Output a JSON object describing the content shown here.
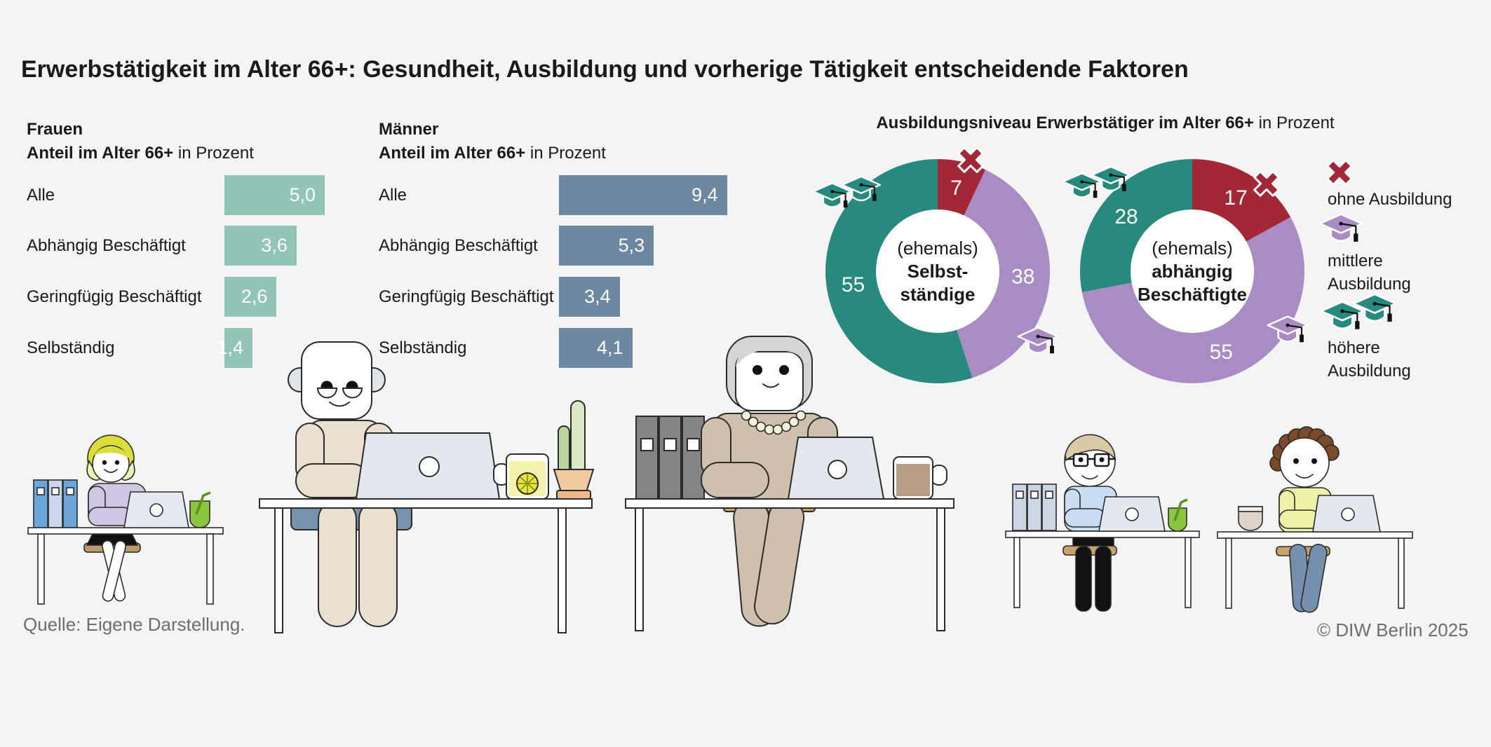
{
  "title": "Erwerbstätigkeit im Alter 66+: Gesundheit, Ausbildung und vorherige Tätigkeit entscheidende Faktoren",
  "charts": {
    "frauen": {
      "heading": "Frauen",
      "subheading_bold": "Anteil im Alter 66+",
      "subheading_regular": " in Prozent",
      "bar_color": "#92c4b7",
      "categories": [
        "Alle",
        "Abhängig Beschäftigt",
        "Geringfügig Beschäftigt",
        "Selbständig"
      ],
      "values": [
        "5,0",
        "3,6",
        "2,6",
        "1,4"
      ],
      "values_numeric": [
        5.0,
        3.6,
        2.6,
        1.4
      ]
    },
    "maenner": {
      "heading": "Männer",
      "subheading_bold": "Anteil im Alter 66+",
      "subheading_regular": " in Prozent",
      "bar_color": "#6f88a1",
      "categories": [
        "Alle",
        "Abhängig Beschäftigt",
        "Geringfügig Beschäftigt",
        "Selbständig"
      ],
      "values": [
        "9,4",
        "5,3",
        "3,4",
        "4,1"
      ],
      "values_numeric": [
        9.4,
        5.3,
        3.4,
        4.1
      ]
    }
  },
  "donut_section": {
    "title_bold": "Ausbildungsniveau Erwerbstätiger im Alter 66+",
    "title_regular": " in Prozent",
    "donuts": [
      {
        "id": "selbststaendige",
        "center_lines": [
          "(ehemals)",
          "Selbst-",
          "ständige"
        ],
        "segments": [
          {
            "label": "ohne Ausbildung",
            "value": 7,
            "color": "#a32837"
          },
          {
            "label": "mittlere Ausbildung",
            "value": 38,
            "color": "#a98cc3"
          },
          {
            "label": "höhere Ausbildung",
            "value": 55,
            "color": "#28897f"
          }
        ]
      },
      {
        "id": "abhaengig-beschaeftigte",
        "center_lines": [
          "(ehemals)",
          "abhängig",
          "Beschäftigte"
        ],
        "segments": [
          {
            "label": "ohne Ausbildung",
            "value": 17,
            "color": "#a32837"
          },
          {
            "label": "mittlere Ausbildung",
            "value": 55,
            "color": "#a98cc3"
          },
          {
            "label": "höhere Ausbildung",
            "value": 28,
            "color": "#28897f"
          }
        ]
      }
    ],
    "legend": [
      {
        "icon": "cross-icon",
        "lines": [
          "ohne Ausbildung"
        ]
      },
      {
        "icon": "graduation-cap-icon",
        "lines": [
          "mittlere",
          "Ausbildung"
        ]
      },
      {
        "icon": "double-graduation-cap-icon",
        "lines": [
          "höhere",
          "Ausbildung"
        ]
      }
    ]
  },
  "footer": {
    "source": "Quelle: Eigene Darstellung.",
    "copyright": "© DIW Berlin 2025"
  },
  "colors": {
    "background": "#f4f4f4",
    "bar_frauen": "#92c4b7",
    "bar_maenner": "#6f88a1",
    "donut_ohne": "#a32837",
    "donut_mittlere": "#a98cc3",
    "donut_hoehere": "#28897f",
    "footer_text": "#6e6e6e"
  },
  "chart_data": [
    {
      "type": "bar",
      "orientation": "horizontal",
      "title": "Frauen — Anteil im Alter 66+ in Prozent",
      "categories": [
        "Alle",
        "Abhängig Beschäftigt",
        "Geringfügig Beschäftigt",
        "Selbständig"
      ],
      "values": [
        5.0,
        3.6,
        2.6,
        1.4
      ],
      "unit": "Prozent",
      "bar_color": "#92c4b7",
      "value_labels": [
        "5,0",
        "3,6",
        "2,6",
        "1,4"
      ]
    },
    {
      "type": "bar",
      "orientation": "horizontal",
      "title": "Männer — Anteil im Alter 66+ in Prozent",
      "categories": [
        "Alle",
        "Abhängig Beschäftigt",
        "Geringfügig Beschäftigt",
        "Selbständig"
      ],
      "values": [
        9.4,
        5.3,
        3.4,
        4.1
      ],
      "unit": "Prozent",
      "bar_color": "#6f88a1",
      "value_labels": [
        "9,4",
        "5,3",
        "3,4",
        "4,1"
      ]
    },
    {
      "type": "pie",
      "subtype": "donut",
      "title": "(ehemals) Selbstständige — Ausbildungsniveau Erwerbstätiger im Alter 66+ in Prozent",
      "labels": [
        "ohne Ausbildung",
        "mittlere Ausbildung",
        "höhere Ausbildung"
      ],
      "values": [
        7,
        38,
        55
      ],
      "colors": [
        "#a32837",
        "#a98cc3",
        "#28897f"
      ],
      "start_angle_deg": 0,
      "direction": "clockwise"
    },
    {
      "type": "pie",
      "subtype": "donut",
      "title": "(ehemals) abhängig Beschäftigte — Ausbildungsniveau Erwerbstätiger im Alter 66+ in Prozent",
      "labels": [
        "ohne Ausbildung",
        "mittlere Ausbildung",
        "höhere Ausbildung"
      ],
      "values": [
        17,
        55,
        28
      ],
      "colors": [
        "#a32837",
        "#a98cc3",
        "#28897f"
      ],
      "start_angle_deg": 0,
      "direction": "clockwise"
    }
  ]
}
